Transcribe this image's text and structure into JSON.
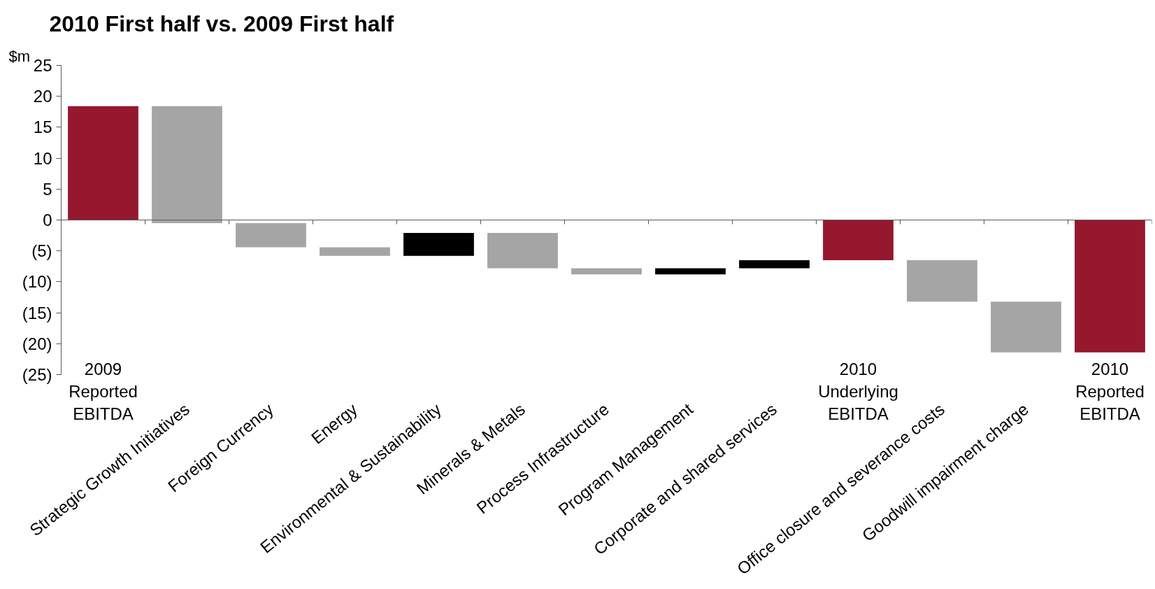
{
  "chart_data": {
    "type": "bar",
    "title": "2010 First half vs. 2009 First half",
    "ylabel": "$m",
    "categories": [
      "2009 Reported EBITDA",
      "Strategic Growth Initiatives",
      "Foreign Currency",
      "Energy",
      "Environmental & Sustainability",
      "Minerals & Metals",
      "Process Infrastructure",
      "Program Management",
      "Corporate and shared services",
      "2010 Underlying EBITDA",
      "Office closure and severance costs",
      "Goodwill impairment charge",
      "2010 Reported EBITDA"
    ],
    "base": [
      0,
      18.4,
      -0.5,
      -4.4,
      -5.8,
      -2.1,
      -7.8,
      -8.8,
      -7.8,
      0,
      -6.5,
      -13.2,
      0
    ],
    "values": [
      18.4,
      -18.9,
      -3.9,
      -1.4,
      3.7,
      -5.7,
      -1.0,
      1.0,
      1.3,
      -6.5,
      -6.7,
      -8.2,
      -21.4
    ],
    "colors": [
      "#96182f",
      "#a5a5a5",
      "#a5a5a5",
      "#a5a5a5",
      "#000000",
      "#a5a5a5",
      "#a5a5a5",
      "#000000",
      "#000000",
      "#96182f",
      "#a5a5a5",
      "#a5a5a5",
      "#96182f"
    ],
    "ylim": [
      -25,
      25
    ],
    "yticks": [
      {
        "value": -25,
        "label": "(25)"
      },
      {
        "value": -20,
        "label": "(20)"
      },
      {
        "value": -15,
        "label": "(15)"
      },
      {
        "value": -10,
        "label": "(10)"
      },
      {
        "value": -5,
        "label": "(5)"
      },
      0,
      5,
      10,
      15,
      20,
      25
    ],
    "ref_lines": [
      {
        "axis": "y",
        "value": 0,
        "color": "#595959"
      }
    ],
    "grid": false
  }
}
